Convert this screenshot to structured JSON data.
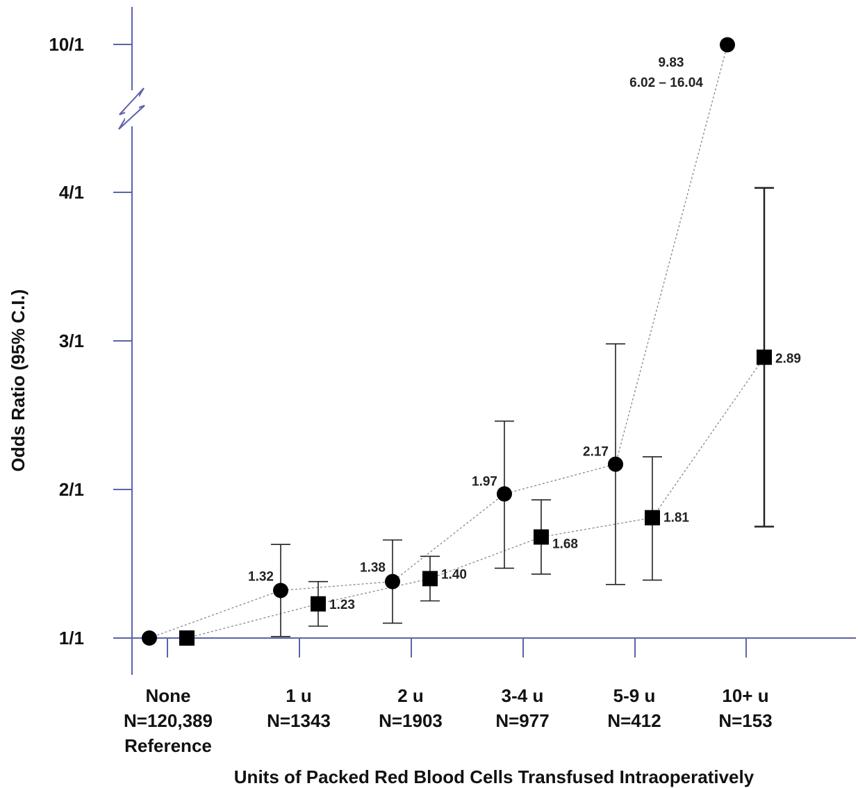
{
  "chart_data": {
    "type": "line",
    "title": "",
    "xlabel": "Units of Packed Red Blood Cells Transfused Intraoperatively",
    "ylabel": "Odds Ratio (95% C.I.)",
    "yticks": [
      "1/1",
      "2/1",
      "3/1",
      "4/1",
      "10/1"
    ],
    "y_axis_break": true,
    "grid": false,
    "legend": "none",
    "categories": [
      {
        "name": "None",
        "n": "N=120,389",
        "note": "Reference"
      },
      {
        "name": "1 u",
        "n": "N=1343",
        "note": ""
      },
      {
        "name": "2 u",
        "n": "N=1903",
        "note": ""
      },
      {
        "name": "3-4 u",
        "n": "N=977",
        "note": ""
      },
      {
        "name": "5-9 u",
        "n": "N=412",
        "note": ""
      },
      {
        "name": "10+ u",
        "n": "N=153",
        "note": ""
      }
    ],
    "series": [
      {
        "marker": "circle",
        "points": [
          {
            "value": 1.0,
            "lo": null,
            "hi": null,
            "label": ""
          },
          {
            "value": 1.32,
            "lo": 1.01,
            "hi": 1.63,
            "label": "1.32"
          },
          {
            "value": 1.38,
            "lo": 1.1,
            "hi": 1.66,
            "label": "1.38"
          },
          {
            "value": 1.97,
            "lo": 1.47,
            "hi": 2.46,
            "label": "1.97"
          },
          {
            "value": 2.17,
            "lo": 1.36,
            "hi": 2.98,
            "label": "2.17"
          },
          {
            "value": 9.83,
            "lo": 6.02,
            "hi": 16.04,
            "label": "9.83",
            "ci_label": "6.02 – 16.04"
          }
        ]
      },
      {
        "marker": "square",
        "points": [
          {
            "value": 1.0,
            "lo": null,
            "hi": null,
            "label": ""
          },
          {
            "value": 1.23,
            "lo": 1.08,
            "hi": 1.38,
            "label": "1.23"
          },
          {
            "value": 1.4,
            "lo": 1.25,
            "hi": 1.55,
            "label": "1.40"
          },
          {
            "value": 1.68,
            "lo": 1.43,
            "hi": 1.93,
            "label": "1.68"
          },
          {
            "value": 1.81,
            "lo": 1.39,
            "hi": 2.22,
            "label": "1.81"
          },
          {
            "value": 2.89,
            "lo": 1.75,
            "hi": 4.03,
            "label": "2.89"
          }
        ]
      }
    ],
    "colors": {
      "axis": "#5b63a8",
      "marker": "#000000",
      "errorbar": "#222222",
      "connector": "#888888"
    }
  }
}
